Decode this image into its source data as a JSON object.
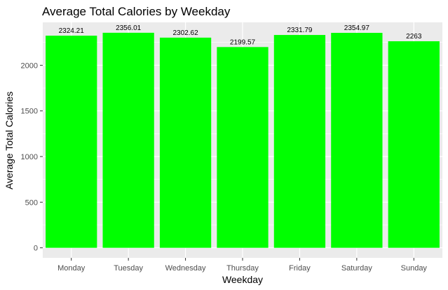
{
  "chart_data": {
    "type": "bar",
    "title": "Average Total Calories by Weekday",
    "xlabel": "Weekday",
    "ylabel": "Average Total Calories",
    "categories": [
      "Monday",
      "Tuesday",
      "Wednesday",
      "Thursday",
      "Friday",
      "Saturday",
      "Sunday"
    ],
    "values": [
      2324.21,
      2356.01,
      2302.62,
      2199.57,
      2331.79,
      2354.97,
      2263
    ],
    "data_labels": [
      "2324.21",
      "2356.01",
      "2302.62",
      "2199.57",
      "2331.79",
      "2354.97",
      "2263"
    ],
    "yticks": [
      0,
      500,
      1000,
      1500,
      2000
    ],
    "ylim": [
      -110,
      2470
    ],
    "bar_color": "#00ff00",
    "panel_background": "#ebebeb",
    "grid_color": "#ffffff",
    "grid": true,
    "legend": "none"
  }
}
